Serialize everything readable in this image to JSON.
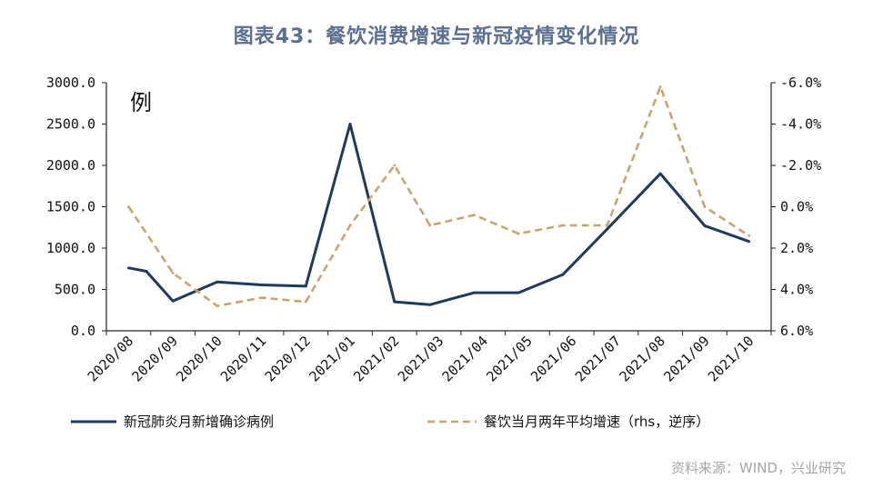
{
  "colors": {
    "title": "#5b6f93",
    "cases": "#203a5c",
    "catering": "#c8a46e",
    "axis": "#222222"
  },
  "chart_data": {
    "type": "line",
    "title": "图表43：餐饮消费增速与新冠疫情变化情况",
    "unit_label": "例",
    "source": "资料来源：WIND，兴业研究",
    "categories": [
      "2020/08",
      "2020/09",
      "2020/10",
      "2020/11",
      "2020/12",
      "2021/01",
      "2021/02",
      "2021/03",
      "2021/04",
      "2021/05",
      "2021/06",
      "2021/07",
      "2021/08",
      "2021/09",
      "2021/10"
    ],
    "x_label_categories": [
      "2020/08",
      "2020/09",
      "2020/10",
      "2020/11",
      "2020/12",
      "2021/01",
      "2021/02",
      "2021/03",
      "2021/04",
      "2021/05",
      "2021/06",
      "2021/07",
      "2021/08",
      "2021/09",
      "2021/10"
    ],
    "y_left": {
      "min": 0,
      "max": 3000,
      "ticks": [
        0,
        500,
        1000,
        1500,
        2000,
        2500,
        3000
      ],
      "tick_labels": [
        "0.0",
        "500.0",
        "1000.0",
        "1500.0",
        "2000.0",
        "2500.0",
        "3000.0"
      ]
    },
    "y_right": {
      "min": -6,
      "max": 6,
      "reversed": true,
      "ticks": [
        -6,
        -4,
        -2,
        0,
        2,
        4,
        6
      ],
      "tick_labels": [
        "-6.0%",
        "-4.0%",
        "-2.0%",
        "0.0%",
        "2.0%",
        "4.0%",
        "6.0%"
      ]
    },
    "series": [
      {
        "name": "新冠肺炎月新增确诊病例",
        "axis": "left",
        "style": "solid",
        "x": [
          0,
          0.4,
          1,
          2,
          3,
          4,
          5,
          6,
          6.8,
          7.8,
          8.8,
          9.8,
          10.8,
          12,
          13,
          14
        ],
        "values": [
          760,
          720,
          360,
          590,
          555,
          540,
          2500,
          350,
          315,
          460,
          460,
          680,
          1230,
          1900,
          1270,
          1080
        ]
      },
      {
        "name": "餐饮当月两年平均增速（rhs，逆序）",
        "axis": "right",
        "style": "dashed",
        "x": [
          0,
          1,
          2,
          3,
          4,
          5,
          6,
          6.8,
          7.8,
          8.8,
          9.8,
          10.8,
          12,
          13,
          14
        ],
        "values": [
          0.0,
          3.2,
          4.8,
          4.4,
          4.6,
          0.9,
          -2.0,
          0.9,
          0.4,
          1.3,
          0.9,
          0.9,
          -5.8,
          0.0,
          1.4
        ]
      }
    ]
  }
}
